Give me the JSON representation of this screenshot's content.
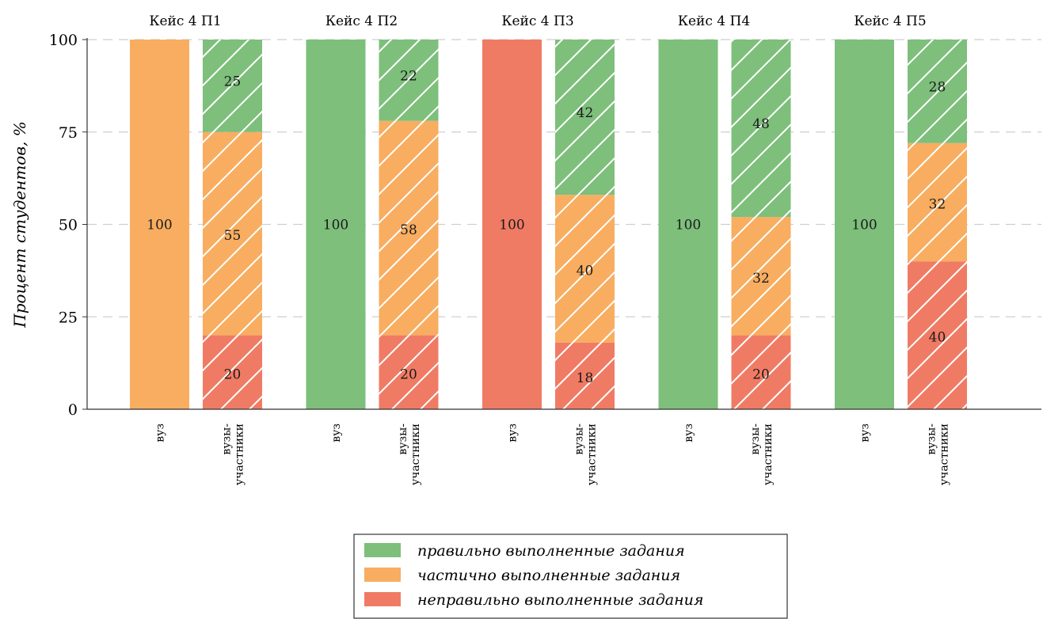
{
  "chart_data": {
    "type": "bar",
    "stacked": true,
    "ylabel": "Процент студентов, %",
    "ylim": [
      0,
      100
    ],
    "yticks": [
      0,
      25,
      50,
      75,
      100
    ],
    "grid": "horizontal dashed",
    "legend_position": "bottom-center",
    "colors": {
      "correct": "#7dbf7b",
      "partial": "#f8ad60",
      "incorrect": "#f07b64"
    },
    "groups": [
      {
        "title": "Кейс 4 П1",
        "bars": [
          {
            "category": "вуз",
            "hatched": false,
            "correct": 0,
            "partial": 100,
            "incorrect": 0
          },
          {
            "category": "вузы-\nучастники",
            "hatched": true,
            "correct": 25,
            "partial": 55,
            "incorrect": 20
          }
        ]
      },
      {
        "title": "Кейс 4 П2",
        "bars": [
          {
            "category": "вуз",
            "hatched": false,
            "correct": 100,
            "partial": 0,
            "incorrect": 0
          },
          {
            "category": "вузы-\nучастники",
            "hatched": true,
            "correct": 22,
            "partial": 58,
            "incorrect": 20
          }
        ]
      },
      {
        "title": "Кейс 4 П3",
        "bars": [
          {
            "category": "вуз",
            "hatched": false,
            "correct": 0,
            "partial": 0,
            "incorrect": 100
          },
          {
            "category": "вузы-\nучастники",
            "hatched": true,
            "correct": 42,
            "partial": 40,
            "incorrect": 18
          }
        ]
      },
      {
        "title": "Кейс 4 П4",
        "bars": [
          {
            "category": "вуз",
            "hatched": false,
            "correct": 100,
            "partial": 0,
            "incorrect": 0
          },
          {
            "category": "вузы-\nучастники",
            "hatched": true,
            "correct": 48,
            "partial": 32,
            "incorrect": 20
          }
        ]
      },
      {
        "title": "Кейс 4 П5",
        "bars": [
          {
            "category": "вуз",
            "hatched": false,
            "correct": 100,
            "partial": 0,
            "incorrect": 0
          },
          {
            "category": "вузы-\nучастники",
            "hatched": true,
            "correct": 28,
            "partial": 32,
            "incorrect": 40
          }
        ]
      }
    ],
    "legend": [
      {
        "key": "correct",
        "label": "правильно выполненные задания"
      },
      {
        "key": "partial",
        "label": "частично выполненные задания"
      },
      {
        "key": "incorrect",
        "label": "неправильно выполненные задания"
      }
    ]
  }
}
